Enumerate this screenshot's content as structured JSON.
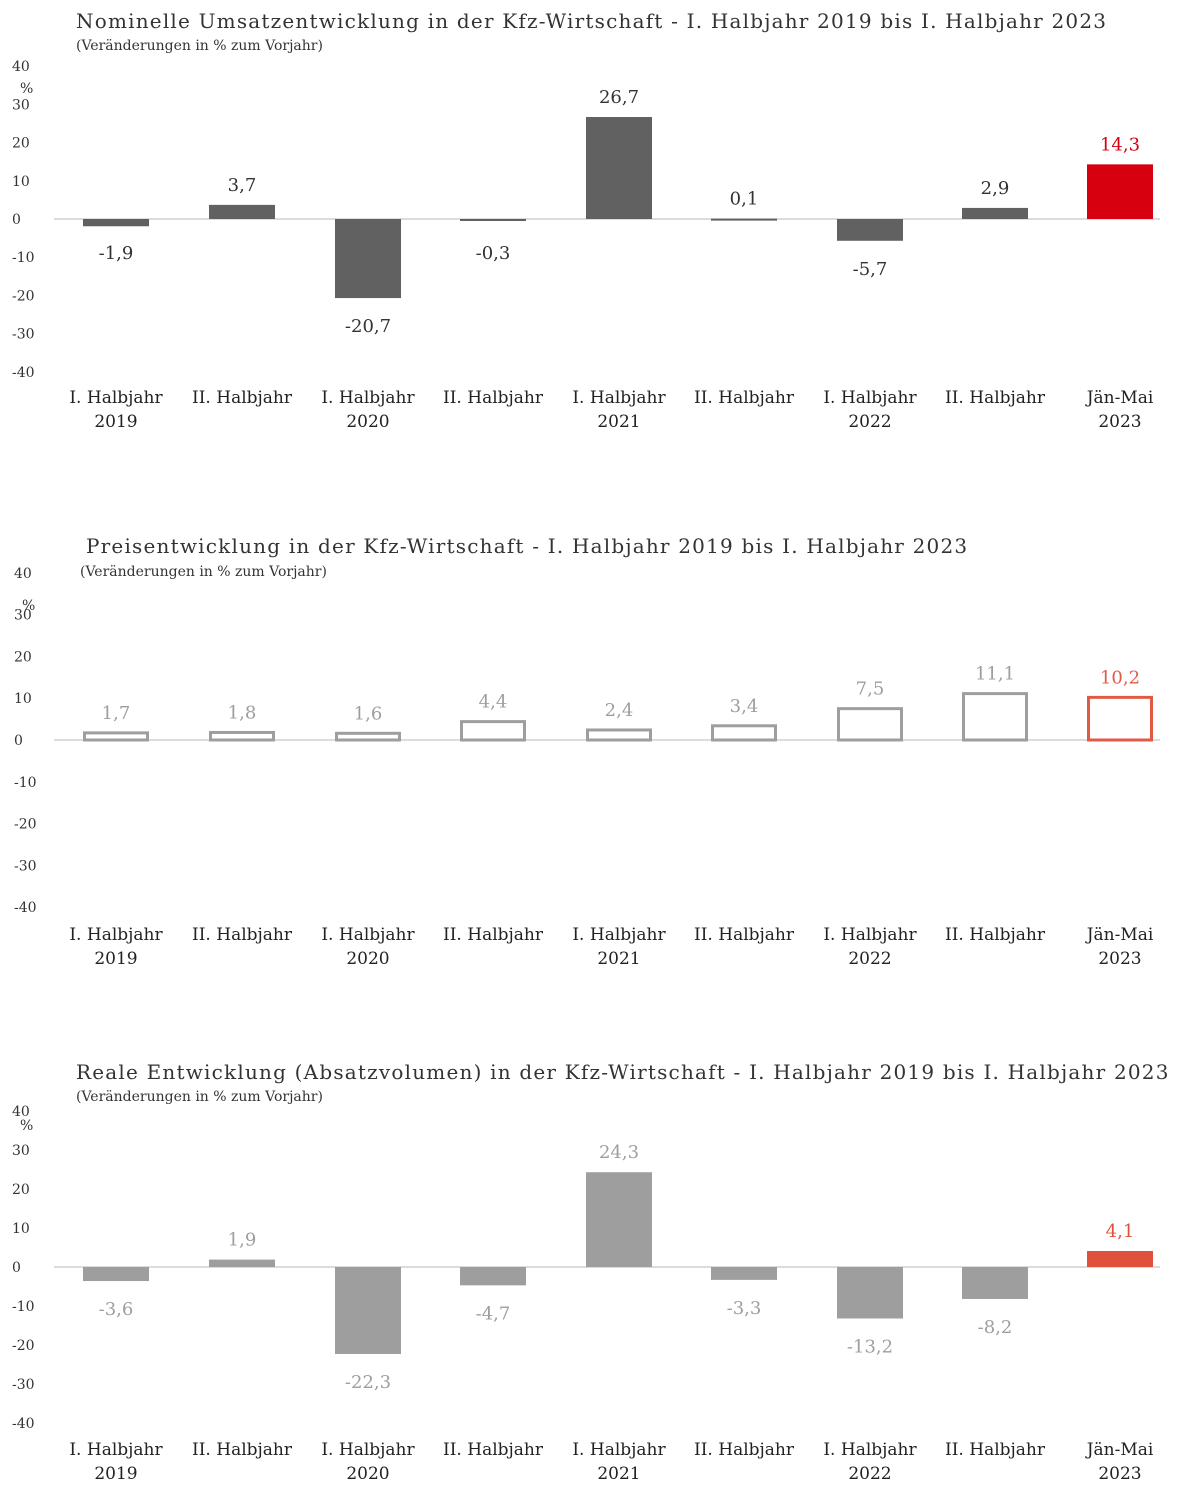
{
  "charts": [
    {
      "title": "Nominelle Umsatzentwicklung in der Kfz-Wirtschaft - I. Halbjahr 2019 bis I. Halbjahr 2023",
      "subtitle": "(Veränderungen in % zum Vorjahr)",
      "unit": "%"
    },
    {
      "title": "Preisentwicklung in der Kfz-Wirtschaft - I. Halbjahr 2019 bis I. Halbjahr 2023",
      "subtitle": "(Veränderungen in % zum Vorjahr)",
      "unit": "%"
    },
    {
      "title": "Reale Entwicklung (Absatzvolumen) in der Kfz-Wirtschaft - I. Halbjahr 2019 bis I. Halbjahr 2023",
      "subtitle": "(Veränderungen in % zum Vorjahr)",
      "unit": "%"
    }
  ],
  "chart_data": [
    {
      "type": "bar",
      "title": "Nominelle Umsatzentwicklung in der Kfz-Wirtschaft - I. Halbjahr 2019 bis I. Halbjahr 2023",
      "subtitle": "(Veränderungen in % zum Vorjahr)",
      "ylabel": "%",
      "ylim": [
        -40,
        40
      ],
      "yticks": [
        "40",
        "30",
        "20",
        "10",
        "0",
        "-10",
        "-20",
        "-30",
        "-40"
      ],
      "categories": [
        [
          "I. Halbjahr",
          "2019"
        ],
        [
          "II. Halbjahr",
          ""
        ],
        [
          "I. Halbjahr",
          "2020"
        ],
        [
          "II. Halbjahr",
          ""
        ],
        [
          "I. Halbjahr",
          "2021"
        ],
        [
          "II. Halbjahr",
          ""
        ],
        [
          "I. Halbjahr",
          "2022"
        ],
        [
          "II. Halbjahr",
          ""
        ],
        [
          "Jän-Mai",
          "2023"
        ]
      ],
      "values": [
        -1.9,
        3.7,
        -20.7,
        -0.3,
        26.7,
        0.1,
        -5.7,
        2.9,
        14.3
      ],
      "labels": [
        "-1,9",
        "3,7",
        "-20,7",
        "-0,3",
        "26,7",
        "0,1",
        "-5,7",
        "2,9",
        "14,3"
      ],
      "style": "filled",
      "bar_color": "#616161",
      "highlight_color": "#d7000f",
      "label_color": "#333333",
      "grid": false
    },
    {
      "type": "bar",
      "title": "Preisentwicklung in der Kfz-Wirtschaft - I. Halbjahr 2019 bis I. Halbjahr 2023",
      "subtitle": "(Veränderungen in % zum Vorjahr)",
      "ylabel": "%",
      "ylim": [
        -40,
        40
      ],
      "yticks": [
        "40",
        "30",
        "20",
        "10",
        "0",
        "-10",
        "-20",
        "-30",
        "-40"
      ],
      "categories": [
        [
          "I. Halbjahr",
          "2019"
        ],
        [
          "II. Halbjahr",
          ""
        ],
        [
          "I. Halbjahr",
          "2020"
        ],
        [
          "II. Halbjahr",
          ""
        ],
        [
          "I. Halbjahr",
          "2021"
        ],
        [
          "II. Halbjahr",
          ""
        ],
        [
          "I. Halbjahr",
          "2022"
        ],
        [
          "II. Halbjahr",
          ""
        ],
        [
          "Jän-Mai",
          "2023"
        ]
      ],
      "values": [
        1.7,
        1.8,
        1.6,
        4.4,
        2.4,
        3.4,
        7.5,
        11.1,
        10.2
      ],
      "labels": [
        "1,7",
        "1,8",
        "1,6",
        "4,4",
        "2,4",
        "3,4",
        "7,5",
        "11,1",
        "10,2"
      ],
      "style": "outline",
      "bar_color": "#9e9e9e",
      "highlight_color": "#e05a46",
      "label_color": "#9e9e9e",
      "grid": false
    },
    {
      "type": "bar",
      "title": "Reale Entwicklung (Absatzvolumen) in der Kfz-Wirtschaft - I. Halbjahr 2019 bis I. Halbjahr 2023",
      "subtitle": "(Veränderungen in % zum Vorjahr)",
      "ylabel": "%",
      "ylim": [
        -40,
        40
      ],
      "yticks": [
        "40",
        "30",
        "20",
        "10",
        "0",
        "-10",
        "-20",
        "-30",
        "-40"
      ],
      "categories": [
        [
          "I. Halbjahr",
          "2019"
        ],
        [
          "II. Halbjahr",
          ""
        ],
        [
          "I. Halbjahr",
          "2020"
        ],
        [
          "II. Halbjahr",
          ""
        ],
        [
          "I. Halbjahr",
          "2021"
        ],
        [
          "II. Halbjahr",
          ""
        ],
        [
          "I. Halbjahr",
          "2022"
        ],
        [
          "II. Halbjahr",
          ""
        ],
        [
          "Jän-Mai",
          "2023"
        ]
      ],
      "values": [
        -3.6,
        1.9,
        -22.3,
        -4.7,
        24.3,
        -3.3,
        -13.2,
        -8.2,
        4.1
      ],
      "labels": [
        "-3,6",
        "1,9",
        "-22,3",
        "-4,7",
        "24,3",
        "-3,3",
        "-13,2",
        "-8,2",
        "4,1"
      ],
      "style": "filled",
      "bar_color": "#9e9e9e",
      "highlight_color": "#e0503c",
      "label_color": "#9e9e9e",
      "grid": false
    }
  ]
}
